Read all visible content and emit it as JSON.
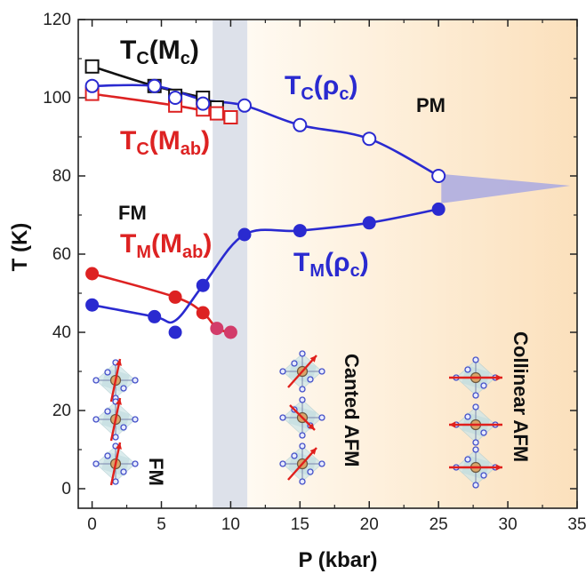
{
  "chart_data": {
    "type": "scatter",
    "xlabel": "P (kbar)",
    "ylabel": "T (K)",
    "xlim": [
      -1,
      35
    ],
    "ylim": [
      -5,
      120
    ],
    "xticks": [
      0,
      5,
      10,
      15,
      20,
      25,
      30,
      35
    ],
    "yticks": [
      0,
      20,
      40,
      60,
      80,
      100,
      120
    ],
    "grid": false,
    "legend": "none",
    "series": [
      {
        "name": "T_C(M_c)",
        "color": "#111111",
        "marker": "open-square",
        "x": [
          0,
          4.5,
          6,
          8,
          9,
          10
        ],
        "y": [
          108,
          103,
          100.5,
          100,
          97.5,
          95
        ]
      },
      {
        "name": "T_C(M_ab)",
        "color": "#dd2222",
        "marker": "open-square",
        "x": [
          0,
          6,
          8,
          9,
          10
        ],
        "y": [
          101,
          98,
          97,
          96,
          95
        ]
      },
      {
        "name": "T_C(ρ_c)",
        "color": "#2a2ad0",
        "marker": "open-circle",
        "x": [
          0,
          4.5,
          6,
          8,
          11,
          15,
          20,
          25
        ],
        "y": [
          103,
          103,
          100,
          98.5,
          98,
          93,
          89.5,
          80
        ]
      },
      {
        "name": "T_M(M_ab)",
        "color": "#dd2222",
        "marker": "filled-circle",
        "x": [
          0,
          6,
          8,
          9,
          10
        ],
        "y": [
          55,
          49,
          45,
          41,
          40
        ]
      },
      {
        "name": "T_M(ρ_c)",
        "color": "#2a2ad0",
        "marker": "filled-circle",
        "x": [
          0,
          4.5,
          6,
          8,
          11,
          15,
          20,
          25
        ],
        "y": [
          47,
          44,
          40,
          52,
          65,
          66,
          68,
          71.5
        ]
      }
    ],
    "annotations": {
      "tc_mc": {
        "main": "T",
        "sub1": "C",
        "mid": "(M",
        "sub2": "c",
        "end": ")"
      },
      "tc_mab": {
        "main": "T",
        "sub1": "C",
        "mid": "(M",
        "sub2": "ab",
        "end": ")"
      },
      "tc_rhoc": {
        "main": "T",
        "sub1": "C",
        "mid": "(ρ",
        "sub2": "c",
        "end": ")"
      },
      "tm_mab": {
        "main": "T",
        "sub1": "M",
        "mid": "(M",
        "sub2": "ab",
        "end": ")"
      },
      "tm_rhoc": {
        "main": "T",
        "sub1": "M",
        "mid": "(ρ",
        "sub2": "c",
        "end": ")"
      },
      "pm": "PM",
      "fm": "FM",
      "fm_vertical": "FM",
      "canted_afm": "Canted AFM",
      "collinear_afm": "Collinear AFM"
    },
    "colors": {
      "black": "#111111",
      "red": "#dd2222",
      "blue": "#2a2ad0",
      "pink": "#d23c6a",
      "gray_band": "#d9dee8",
      "peach": "#fbe3c2"
    }
  }
}
